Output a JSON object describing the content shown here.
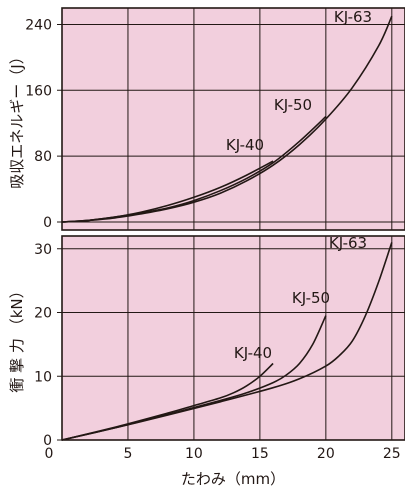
{
  "colors": {
    "panel_background": "#f2cfdd",
    "grid": "#231815",
    "curve": "#231815"
  },
  "chart_data": [
    {
      "type": "line",
      "panel": "top",
      "ylabel": "吸収エネルギー（J）",
      "xlim": [
        0,
        26
      ],
      "ylim": [
        0,
        260
      ],
      "xticks": [
        5,
        10,
        15,
        20,
        25
      ],
      "yticks": [
        0,
        80,
        160,
        240
      ],
      "ytick_labels": [
        "0",
        "80",
        "160",
        "240"
      ],
      "grid": true,
      "series": [
        {
          "name": "KJ-40",
          "x": [
            0,
            2,
            4,
            6,
            8,
            10,
            12,
            14,
            16
          ],
          "y": [
            0,
            2,
            6,
            12,
            20,
            30,
            42,
            57,
            74
          ]
        },
        {
          "name": "KJ-50",
          "x": [
            0,
            2,
            4,
            6,
            8,
            10,
            12,
            14,
            16,
            18,
            20
          ],
          "y": [
            0,
            2,
            6,
            11,
            17,
            26,
            38,
            53,
            72,
            98,
            128
          ]
        },
        {
          "name": "KJ-63",
          "x": [
            0,
            2,
            4,
            6,
            8,
            10,
            12,
            14,
            16,
            18,
            20,
            22,
            24,
            25
          ],
          "y": [
            0,
            2,
            5,
            10,
            16,
            24,
            35,
            50,
            69,
            94,
            125,
            163,
            214,
            250
          ]
        }
      ]
    },
    {
      "type": "line",
      "panel": "bottom",
      "xlabel": "たわみ（mm）",
      "ylabel": "衝 撃 力 （kN）",
      "xlim": [
        0,
        26
      ],
      "ylim": [
        0,
        32
      ],
      "xticks": [
        5,
        10,
        15,
        20,
        25
      ],
      "xtick_labels": [
        "5",
        "10",
        "15",
        "20",
        "25"
      ],
      "yticks": [
        0,
        10,
        20,
        30
      ],
      "ytick_labels": [
        "0",
        "10",
        "20",
        "30"
      ],
      "origin_label": "0",
      "grid": true,
      "series": [
        {
          "name": "KJ-40",
          "x": [
            0,
            4,
            8,
            10,
            12,
            13,
            14,
            15,
            16
          ],
          "y": [
            0,
            2.0,
            4.2,
            5.4,
            6.6,
            7.4,
            8.5,
            10.0,
            12.0
          ]
        },
        {
          "name": "KJ-50",
          "x": [
            0,
            4,
            8,
            12,
            14,
            16,
            17,
            18,
            19,
            20
          ],
          "y": [
            0,
            1.9,
            4.0,
            6.2,
            7.4,
            9.0,
            10.2,
            12.0,
            15.0,
            19.5
          ]
        },
        {
          "name": "KJ-63",
          "x": [
            0,
            4,
            8,
            12,
            16,
            18,
            20,
            21,
            22,
            23,
            24,
            25
          ],
          "y": [
            0,
            1.9,
            3.9,
            6.0,
            8.2,
            9.6,
            11.6,
            13.2,
            15.5,
            19.5,
            24.8,
            31.0
          ]
        }
      ]
    }
  ]
}
